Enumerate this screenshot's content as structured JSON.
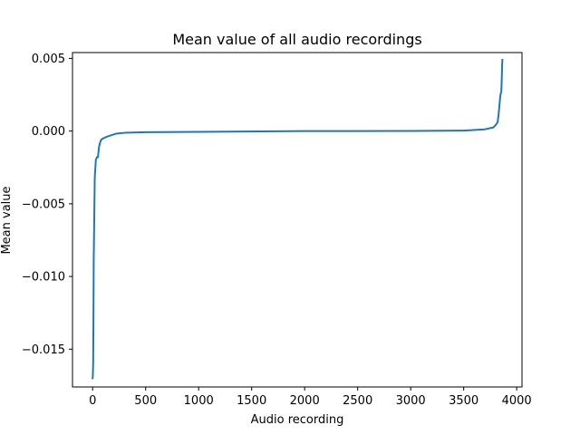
{
  "chart_data": {
    "type": "line",
    "title": "Mean value of all audio recordings",
    "xlabel": "Audio recording",
    "ylabel": "Mean value",
    "xlim": [
      -190,
      4050
    ],
    "ylim": [
      -0.0176,
      0.0054
    ],
    "xticks": [
      0,
      500,
      1000,
      1500,
      2000,
      2500,
      3000,
      3500,
      4000
    ],
    "yticks": [
      -0.015,
      -0.01,
      -0.005,
      0.0,
      0.005
    ],
    "xtick_labels": [
      "0",
      "500",
      "1000",
      "1500",
      "2000",
      "2500",
      "3000",
      "3500",
      "4000"
    ],
    "ytick_labels": [
      "−0.015",
      "−0.010",
      "−0.005",
      "0.000",
      "0.005"
    ],
    "grid": false,
    "legend": "none",
    "series": [
      {
        "color": "#1f77b4",
        "x": [
          0,
          2,
          5,
          8,
          10,
          20,
          30,
          40,
          45,
          50,
          60,
          70,
          80,
          100,
          130,
          170,
          220,
          300,
          500,
          1000,
          2000,
          3000,
          3500,
          3700,
          3780,
          3800,
          3810,
          3820,
          3830,
          3840,
          3845,
          3850,
          3855,
          3860,
          3862,
          3865
        ],
        "values": [
          -0.017,
          -0.0168,
          -0.016,
          -0.0125,
          -0.009,
          -0.0032,
          -0.002,
          -0.0018,
          -0.0018,
          -0.0018,
          -0.0011,
          -0.0008,
          -0.0006,
          -0.0005,
          -0.0004,
          -0.0003,
          -0.00018,
          -0.00012,
          -8e-05,
          -5e-05,
          0.0,
          1e-05,
          3e-05,
          0.00012,
          0.00025,
          0.0004,
          0.0005,
          0.0006,
          0.0012,
          0.002,
          0.0024,
          0.0026,
          0.0027,
          0.0038,
          0.0045,
          0.0049
        ]
      }
    ]
  }
}
